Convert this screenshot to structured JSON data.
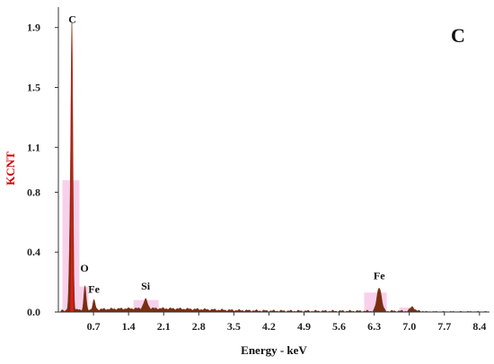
{
  "chart_data": {
    "type": "area",
    "panel_label": "C",
    "xlabel": "Energy - keV",
    "ylabel": "KCNT",
    "xlim": [
      0,
      8.6
    ],
    "ylim": [
      0,
      2.0
    ],
    "x_ticks": [
      "0.7",
      "1.4",
      "2.1",
      "2.8",
      "3.5",
      "4.2",
      "4.9",
      "5.6",
      "6.3",
      "7.0",
      "7.7",
      "8.4"
    ],
    "y_ticks": [
      "0.0",
      "0.4",
      "0.8",
      "1.1",
      "1.5",
      "1.9"
    ],
    "peak_labels": [
      {
        "label": "C",
        "x": 0.28,
        "y": 1.93
      },
      {
        "label": "O",
        "x": 0.52,
        "y": 0.27
      },
      {
        "label": "Fe",
        "x": 0.71,
        "y": 0.13
      },
      {
        "label": "Si",
        "x": 1.74,
        "y": 0.15
      },
      {
        "label": "Fe",
        "x": 6.4,
        "y": 0.22
      }
    ],
    "highlight_windows": [
      {
        "x0": 0.08,
        "x1": 0.42,
        "height": 0.88
      },
      {
        "x0": 0.42,
        "x1": 0.6,
        "height": 0.17
      },
      {
        "x0": 1.5,
        "x1": 2.0,
        "height": 0.08
      },
      {
        "x0": 6.1,
        "x1": 6.55,
        "height": 0.13
      },
      {
        "x0": 6.8,
        "x1": 7.1,
        "height": 0.03
      }
    ],
    "spectrum_peaks": [
      {
        "x": 0.27,
        "height": 1.87,
        "width": 0.02
      },
      {
        "x": 0.23,
        "height": 0.4,
        "width": 0.02
      },
      {
        "x": 0.53,
        "height": 0.16,
        "width": 0.022
      },
      {
        "x": 0.71,
        "height": 0.06,
        "width": 0.025
      },
      {
        "x": 1.74,
        "height": 0.06,
        "width": 0.04
      },
      {
        "x": 6.4,
        "height": 0.16,
        "width": 0.045
      },
      {
        "x": 7.06,
        "height": 0.03,
        "width": 0.04
      }
    ],
    "colors": {
      "spectrum_fill": "#7a2e10",
      "main_peak": "#e81818",
      "highlight": "#f5c6e6",
      "axis": "#333333",
      "ylabel": "#cc0000",
      "text": "#111111"
    },
    "grid": false,
    "legend": "none"
  }
}
